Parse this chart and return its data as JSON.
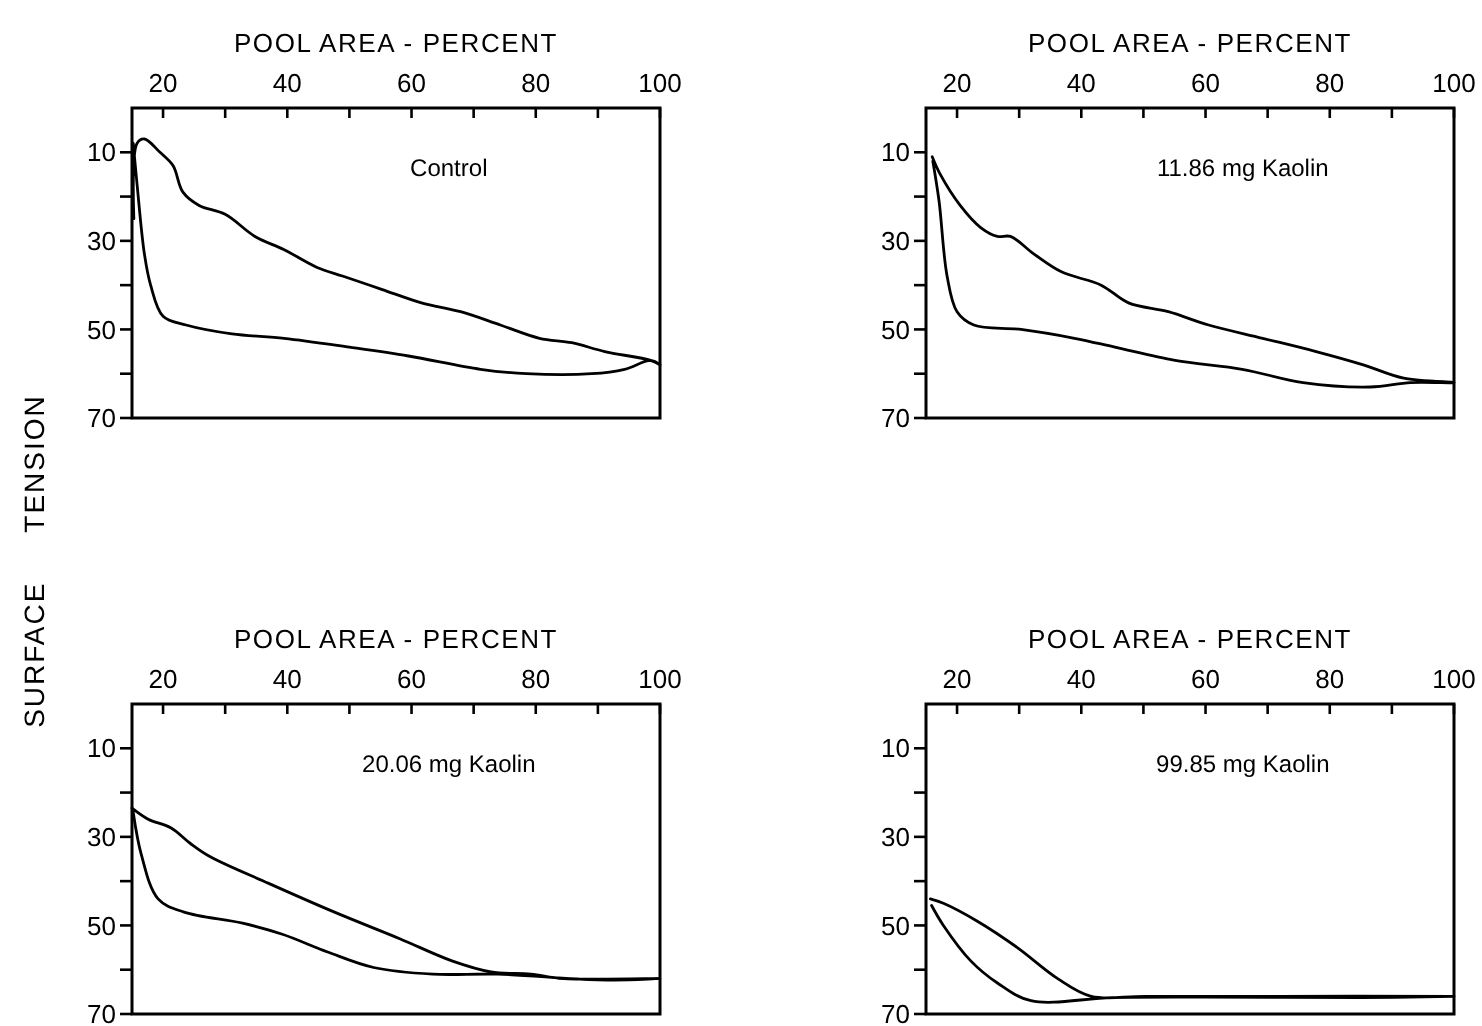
{
  "chart_data": [
    {
      "type": "line",
      "xlabel": "POOL AREA - PERCENT",
      "ylabel": "SURFACE TENSION",
      "annotations": [
        "Control"
      ],
      "xlim": [
        15,
        100
      ],
      "ylim": [
        70,
        0
      ],
      "xticks": [
        20,
        {
          "value": 30,
          "label": null
        },
        40,
        {
          "value": 50,
          "label": null
        },
        60,
        {
          "value": 70,
          "label": null
        },
        80,
        {
          "value": 90,
          "label": null
        },
        100
      ],
      "yticks": [
        10,
        {
          "value": 20,
          "label": null
        },
        30,
        {
          "value": 40,
          "label": null
        },
        50,
        {
          "value": 60,
          "label": null
        },
        70
      ],
      "series": [
        {
          "color": "#000000",
          "x": [
            15.3,
            15.8,
            17,
            19.5,
            21.6,
            23.2,
            25.8,
            30,
            34.8,
            39.5,
            44.8,
            49,
            55.3,
            61.6,
            67.9,
            74.3,
            80.6,
            85.8,
            91.1,
            98.5,
            100,
            98.5,
            94.3,
            89,
            78.5,
            71.1,
            59.5,
            50,
            39.5,
            31.1,
            23.7,
            20,
            18,
            17,
            15.8,
            15.2
          ],
          "values": [
            25,
            8,
            7,
            10,
            13,
            19,
            22,
            24,
            29,
            32,
            36,
            38,
            41,
            44,
            46,
            49,
            52,
            53,
            55,
            57,
            58,
            57,
            59,
            60,
            60,
            59,
            56,
            54,
            52,
            51,
            49,
            47,
            40,
            33,
            17,
            8
          ]
        }
      ]
    },
    {
      "type": "line",
      "xlabel": "POOL AREA - PERCENT",
      "annotations": [
        "11.86 mg Kaolin"
      ],
      "xlim": [
        15,
        100
      ],
      "ylim": [
        70,
        0
      ],
      "xticks": [
        20,
        {
          "value": 30,
          "label": null
        },
        40,
        {
          "value": 50,
          "label": null
        },
        60,
        {
          "value": 70,
          "label": null
        },
        80,
        {
          "value": 90,
          "label": null
        },
        100
      ],
      "yticks": [
        10,
        {
          "value": 20,
          "label": null
        },
        30,
        {
          "value": 40,
          "label": null
        },
        50,
        {
          "value": 60,
          "label": null
        },
        70
      ],
      "series": [
        {
          "color": "#000000",
          "x": [
            16,
            17.3,
            20.5,
            23.8,
            26.5,
            28.6,
            32.4,
            36.8,
            43.2,
            47.6,
            54,
            60.5,
            69.2,
            77.8,
            85.4,
            91.9,
            100,
            93,
            86.5,
            75.7,
            65.9,
            55.1,
            45.4,
            38.9,
            30.3,
            22.7,
            20,
            18.4,
            17.1,
            16.1
          ],
          "values": [
            11,
            15,
            22,
            27,
            29,
            29,
            33,
            37,
            40,
            44,
            46,
            49,
            52,
            55,
            58,
            61,
            62,
            62,
            63,
            62,
            59,
            57,
            54,
            52,
            50,
            49,
            46,
            38,
            21,
            12
          ]
        }
      ]
    },
    {
      "type": "line",
      "xlabel": "POOL AREA - PERCENT",
      "annotations": [
        "20.06 mg Kaolin"
      ],
      "xlim": [
        15,
        100
      ],
      "ylim": [
        70,
        0
      ],
      "xticks": [
        20,
        {
          "value": 30,
          "label": null
        },
        40,
        {
          "value": 50,
          "label": null
        },
        60,
        {
          "value": 70,
          "label": null
        },
        80,
        {
          "value": 90,
          "label": null
        },
        100
      ],
      "yticks": [
        10,
        {
          "value": 20,
          "label": null
        },
        30,
        {
          "value": 40,
          "label": null
        },
        50,
        {
          "value": 60,
          "label": null
        },
        70
      ],
      "series": [
        {
          "color": "#000000",
          "x": [
            15,
            17.6,
            21.3,
            24.4,
            27.6,
            37,
            47.6,
            58.1,
            66.5,
            72.8,
            79.2,
            84.4,
            100,
            90,
            73.9,
            63.4,
            53.9,
            46.5,
            39.2,
            32.8,
            23.4,
            19.2,
            16.5,
            15.2
          ],
          "values": [
            23.5,
            26,
            28,
            31.5,
            34.5,
            40.5,
            47,
            53,
            58,
            60.5,
            61,
            62,
            62,
            62.3,
            61,
            61,
            59.5,
            56,
            52,
            49.5,
            47,
            44,
            34,
            24.5
          ]
        }
      ]
    },
    {
      "type": "line",
      "xlabel": "POOL AREA - PERCENT",
      "annotations": [
        "99.85 mg Kaolin"
      ],
      "xlim": [
        15,
        100
      ],
      "ylim": [
        70,
        0
      ],
      "xticks": [
        20,
        {
          "value": 30,
          "label": null
        },
        40,
        {
          "value": 50,
          "label": null
        },
        60,
        {
          "value": 70,
          "label": null
        },
        80,
        {
          "value": 90,
          "label": null
        },
        100
      ],
      "yticks": [
        10,
        {
          "value": 20,
          "label": null
        },
        30,
        {
          "value": 40,
          "label": null
        },
        50,
        {
          "value": 60,
          "label": null
        },
        70
      ],
      "series": [
        {
          "color": "#000000",
          "x": [
            15.7,
            17.8,
            23.2,
            29.7,
            36.2,
            41.6,
            50.3,
            71.9,
            100,
            85,
            60,
            45,
            31.9,
            26.5,
            22.2,
            17.8,
            15.9
          ],
          "values": [
            44,
            45,
            49,
            55,
            62,
            66,
            66,
            66,
            66,
            66.3,
            66.2,
            66.3,
            67,
            63,
            58,
            50,
            45.5
          ]
        }
      ]
    }
  ]
}
